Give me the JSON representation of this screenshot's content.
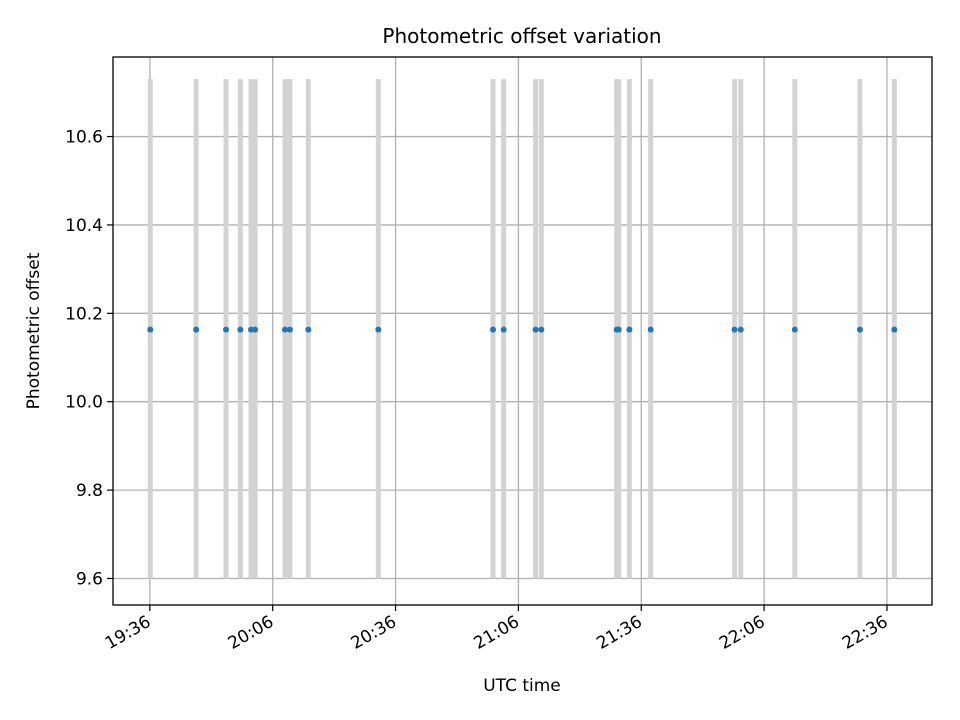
{
  "chart_data": {
    "type": "scatter",
    "title": "Photometric offset variation",
    "xlabel": "UTC time",
    "ylabel": "Photometric offset",
    "x_tick_labels": [
      "19:36",
      "20:06",
      "20:36",
      "21:06",
      "21:36",
      "22:06",
      "22:36"
    ],
    "x_tick_minutes": [
      1176,
      1206,
      1236,
      1266,
      1296,
      1326,
      1356
    ],
    "xlim_minutes": [
      1167,
      1367
    ],
    "y_ticks": [
      9.6,
      9.8,
      10.0,
      10.2,
      10.4,
      10.6
    ],
    "y_tick_labels": [
      "9.6",
      "9.8",
      "10.0",
      "10.2",
      "10.4",
      "10.6"
    ],
    "ylim": [
      9.54,
      10.78
    ],
    "grid": true,
    "errorbar_range": [
      9.6,
      10.73
    ],
    "errorbar_color": "#d3d3d3",
    "point_color": "#1f77b4",
    "x_minutes": [
      1176.1,
      1187.3,
      1194.6,
      1198.1,
      1200.7,
      1201.7,
      1209.0,
      1210.2,
      1214.7,
      1231.8,
      1259.8,
      1262.4,
      1270.2,
      1271.6,
      1290.0,
      1290.5,
      1293.1,
      1298.3,
      1318.8,
      1320.3,
      1333.5,
      1349.4,
      1357.8
    ],
    "values": [
      10.163,
      10.163,
      10.163,
      10.163,
      10.163,
      10.163,
      10.163,
      10.163,
      10.163,
      10.163,
      10.163,
      10.163,
      10.163,
      10.163,
      10.163,
      10.163,
      10.163,
      10.163,
      10.163,
      10.163,
      10.163,
      10.163,
      10.163
    ]
  }
}
